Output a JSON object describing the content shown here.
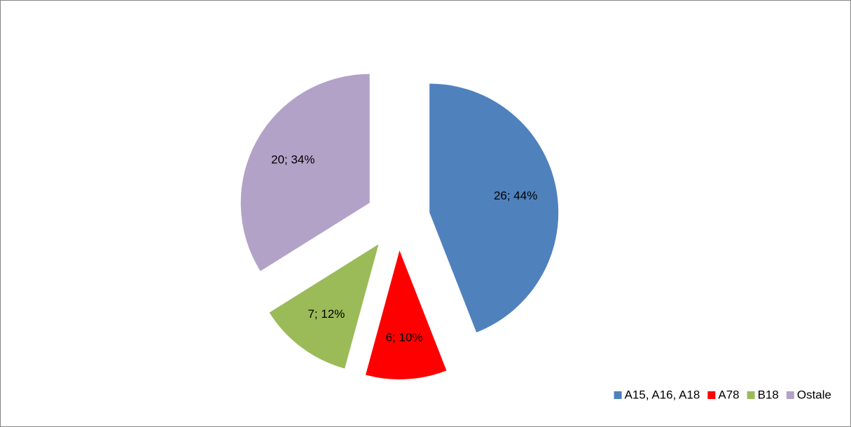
{
  "chart_data": {
    "type": "pie",
    "categories": [
      "A15, A16, A18",
      "A78",
      "B18",
      "Ostale"
    ],
    "values": [
      26,
      6,
      7,
      20
    ],
    "value_labels": [
      "26; 44%",
      "6; 10%",
      "7; 12%",
      "20; 34%"
    ],
    "colors": [
      "#4f81bd",
      "#ff0000",
      "#9bbb59",
      "#b3a2c7"
    ],
    "legend": "bottom-right"
  }
}
